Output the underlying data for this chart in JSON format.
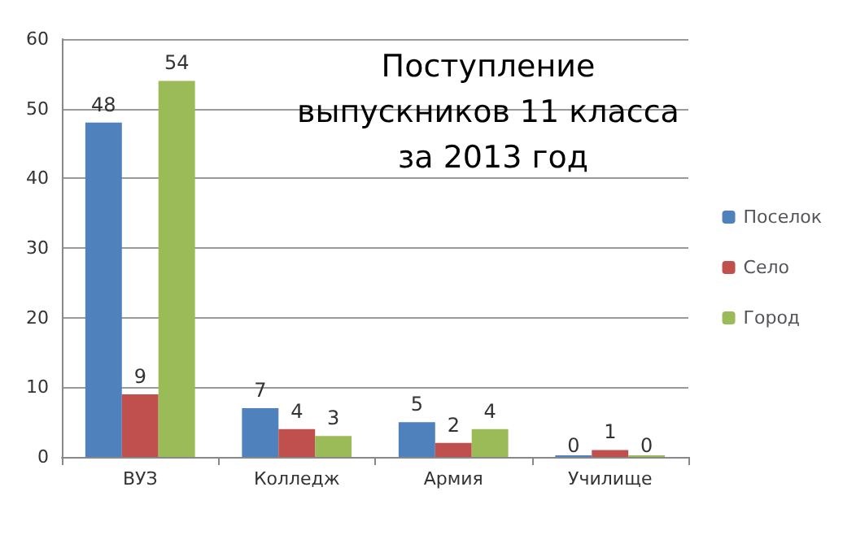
{
  "chart_data": {
    "type": "bar",
    "title": "Поступление выпускников 11 класса за 2013 год",
    "categories": [
      "ВУЗ",
      "Колледж",
      "Армия",
      "Училище"
    ],
    "series": [
      {
        "name": "Поселок",
        "color": "#4f81bd",
        "values": [
          48,
          7,
          5,
          0
        ]
      },
      {
        "name": "Село",
        "color": "#c0504d",
        "values": [
          9,
          4,
          2,
          1
        ]
      },
      {
        "name": "Город",
        "color": "#9bbb59",
        "values": [
          54,
          3,
          4,
          0
        ]
      }
    ],
    "ylim": [
      0,
      60
    ],
    "yticks": [
      0,
      10,
      20,
      30,
      40,
      50,
      60
    ],
    "grid": "y",
    "legend": "right",
    "data_labels": true
  }
}
